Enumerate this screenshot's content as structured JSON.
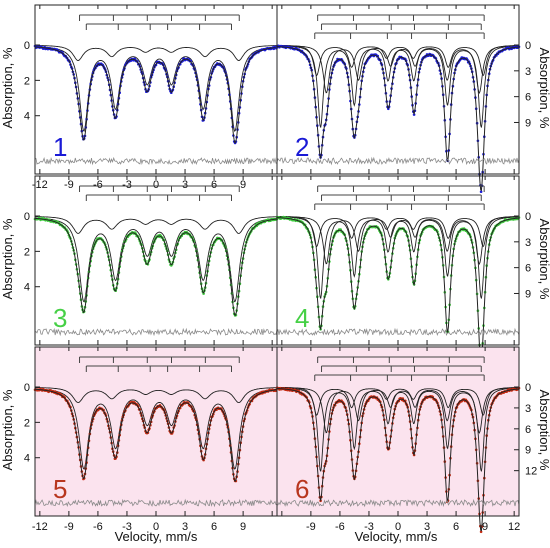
{
  "figure": {
    "x_axis_label": "Velocity, mm/s",
    "left_axis_label": "Absorption, %",
    "right_axis_label": "Absorption, %",
    "fit_color": "#222222",
    "residual_color": "#8a8a8a",
    "stick_color": "#444444",
    "frame_color": "#222222"
  },
  "chart_data": [
    {
      "type": "scatter",
      "panel_label": "1",
      "label_color": "#1a1ad6",
      "data_color": "#1c1cd8",
      "background_tint": null,
      "y_axis_side": "left",
      "ylim": [
        0,
        5.6
      ],
      "yticks": [
        0,
        2,
        4
      ],
      "xlim": [
        -12.5,
        12.5
      ],
      "xticks": [
        -12,
        -9,
        -6,
        -3,
        0,
        3,
        6,
        9,
        12
      ],
      "xticks_labeled": [
        -12,
        -9,
        -6,
        -3,
        0,
        3,
        6,
        9
      ],
      "sextets": [
        {
          "center": 0.35,
          "split_outer": 15.6,
          "depth": 4.75,
          "width": 0.55,
          "role": "main"
        },
        {
          "center": 0.25,
          "split_outer": 16.6,
          "depth": 0.85,
          "width": 0.65,
          "role": "minor"
        }
      ],
      "stick_diagrams": [
        {
          "positions": [
            -7.9,
            -4.4,
            -0.9,
            1.6,
            5.1,
            8.6
          ]
        },
        {
          "positions": [
            -7.2,
            -3.9,
            -0.6,
            1.2,
            4.5,
            7.8
          ]
        }
      ]
    },
    {
      "type": "scatter",
      "panel_label": "2",
      "label_color": "#1a1ad6",
      "data_color": "#1c1cd8",
      "background_tint": null,
      "y_axis_side": "right",
      "ylim": [
        0,
        11.5
      ],
      "yticks": [
        0,
        3,
        6,
        9
      ],
      "xlim": [
        -12.5,
        12.5
      ],
      "xticks": [
        -12,
        -9,
        -6,
        -3,
        0,
        3,
        6,
        9,
        12
      ],
      "xticks_labeled": [],
      "sextets": [
        {
          "center": 0.3,
          "split_outer": 16.6,
          "depth": 9.5,
          "width": 0.35,
          "role": "main"
        },
        {
          "center": 0.5,
          "split_outer": 15.8,
          "depth": 5.5,
          "width": 0.4,
          "role": "second"
        },
        {
          "center": 0.2,
          "split_outer": 17.2,
          "depth": 3.5,
          "width": 0.4,
          "role": "third"
        }
      ],
      "stick_diagrams": [
        {
          "positions": [
            -8.3,
            -4.6,
            -0.9,
            1.6,
            5.3,
            8.9
          ]
        },
        {
          "positions": [
            -7.9,
            -4.3,
            -0.7,
            1.7,
            5.2,
            8.6
          ]
        },
        {
          "positions": [
            -8.6,
            -4.9,
            -1.1,
            1.4,
            5.0,
            8.9
          ]
        }
      ]
    },
    {
      "type": "scatter",
      "panel_label": "3",
      "label_color": "#46d046",
      "data_color": "#3cc83c",
      "background_tint": null,
      "y_axis_side": "left",
      "ylim": [
        0,
        5.6
      ],
      "yticks": [
        0,
        2,
        4
      ],
      "xlim": [
        -12.5,
        12.5
      ],
      "xticks": [
        -12,
        -9,
        -6,
        -3,
        0,
        3,
        6,
        9,
        12
      ],
      "xticks_labeled": [],
      "sextets": [
        {
          "center": 0.35,
          "split_outer": 15.6,
          "depth": 4.7,
          "width": 0.6,
          "role": "main"
        },
        {
          "center": 0.25,
          "split_outer": 16.6,
          "depth": 0.95,
          "width": 0.7,
          "role": "minor"
        }
      ],
      "stick_diagrams": [
        {
          "positions": [
            -7.9,
            -4.4,
            -0.9,
            1.6,
            5.1,
            8.6
          ]
        },
        {
          "positions": [
            -7.2,
            -3.9,
            -0.6,
            1.2,
            4.5,
            7.8
          ]
        }
      ]
    },
    {
      "type": "scatter",
      "panel_label": "4",
      "label_color": "#46d046",
      "data_color": "#3cc83c",
      "background_tint": null,
      "y_axis_side": "right",
      "ylim": [
        0,
        11.5
      ],
      "yticks": [
        0,
        3,
        6,
        9
      ],
      "xlim": [
        -12.5,
        12.5
      ],
      "xticks": [
        -12,
        -9,
        -6,
        -3,
        0,
        3,
        6,
        9,
        12
      ],
      "xticks_labeled": [],
      "sextets": [
        {
          "center": 0.3,
          "split_outer": 16.6,
          "depth": 9.5,
          "width": 0.35,
          "role": "main"
        },
        {
          "center": 0.5,
          "split_outer": 15.8,
          "depth": 5.5,
          "width": 0.4,
          "role": "second"
        },
        {
          "center": 0.2,
          "split_outer": 17.2,
          "depth": 3.5,
          "width": 0.4,
          "role": "third"
        }
      ],
      "stick_diagrams": [
        {
          "positions": [
            -8.3,
            -4.6,
            -0.9,
            1.6,
            5.3,
            8.9
          ]
        },
        {
          "positions": [
            -7.9,
            -4.3,
            -0.7,
            1.7,
            5.2,
            8.6
          ]
        },
        {
          "positions": [
            -8.6,
            -4.9,
            -1.1,
            1.4,
            5.0,
            8.9
          ]
        }
      ]
    },
    {
      "type": "scatter",
      "panel_label": "5",
      "label_color": "#b8361e",
      "data_color": "#c62b12",
      "background_tint": "#fbe3ee",
      "y_axis_side": "left",
      "ylim": [
        0,
        5.6
      ],
      "yticks": [
        0,
        2,
        4
      ],
      "xlim": [
        -12.5,
        12.5
      ],
      "xticks": [
        -12,
        -9,
        -6,
        -3,
        0,
        3,
        6,
        9,
        12
      ],
      "xticks_labeled": [
        -12,
        -9,
        -6,
        -3,
        0,
        3,
        6,
        9
      ],
      "sextets": [
        {
          "center": 0.35,
          "split_outer": 15.6,
          "depth": 4.5,
          "width": 0.6,
          "role": "main"
        },
        {
          "center": 0.25,
          "split_outer": 16.6,
          "depth": 0.85,
          "width": 0.7,
          "role": "minor"
        }
      ],
      "stick_diagrams": [
        {
          "positions": [
            -7.9,
            -4.4,
            -0.9,
            1.6,
            5.1,
            8.6
          ]
        },
        {
          "positions": [
            -7.2,
            -3.9,
            -0.6,
            1.2,
            4.5,
            7.8
          ]
        }
      ]
    },
    {
      "type": "scatter",
      "panel_label": "6",
      "label_color": "#b8361e",
      "data_color": "#c62b12",
      "background_tint": "#fbe3ee",
      "y_axis_side": "right",
      "ylim": [
        0,
        14.2
      ],
      "yticks": [
        0,
        3,
        6,
        9,
        12
      ],
      "xlim": [
        -12.5,
        12.5
      ],
      "xticks": [
        -12,
        -9,
        -6,
        -3,
        0,
        3,
        6,
        9,
        12
      ],
      "xticks_labeled": [
        -9,
        -6,
        -3,
        0,
        3,
        6,
        9,
        12
      ],
      "sextets": [
        {
          "center": 0.3,
          "split_outer": 16.6,
          "depth": 12.0,
          "width": 0.35,
          "role": "main"
        },
        {
          "center": 0.5,
          "split_outer": 15.8,
          "depth": 6.5,
          "width": 0.4,
          "role": "second"
        },
        {
          "center": 0.2,
          "split_outer": 17.2,
          "depth": 4.0,
          "width": 0.4,
          "role": "third"
        }
      ],
      "stick_diagrams": [
        {
          "positions": [
            -8.3,
            -4.6,
            -0.9,
            1.6,
            5.3,
            8.9
          ]
        },
        {
          "positions": [
            -7.9,
            -4.3,
            -0.7,
            1.7,
            5.2,
            8.6
          ]
        },
        {
          "positions": [
            -8.6,
            -4.9,
            -1.1,
            1.4,
            5.0,
            8.9
          ]
        }
      ]
    }
  ]
}
